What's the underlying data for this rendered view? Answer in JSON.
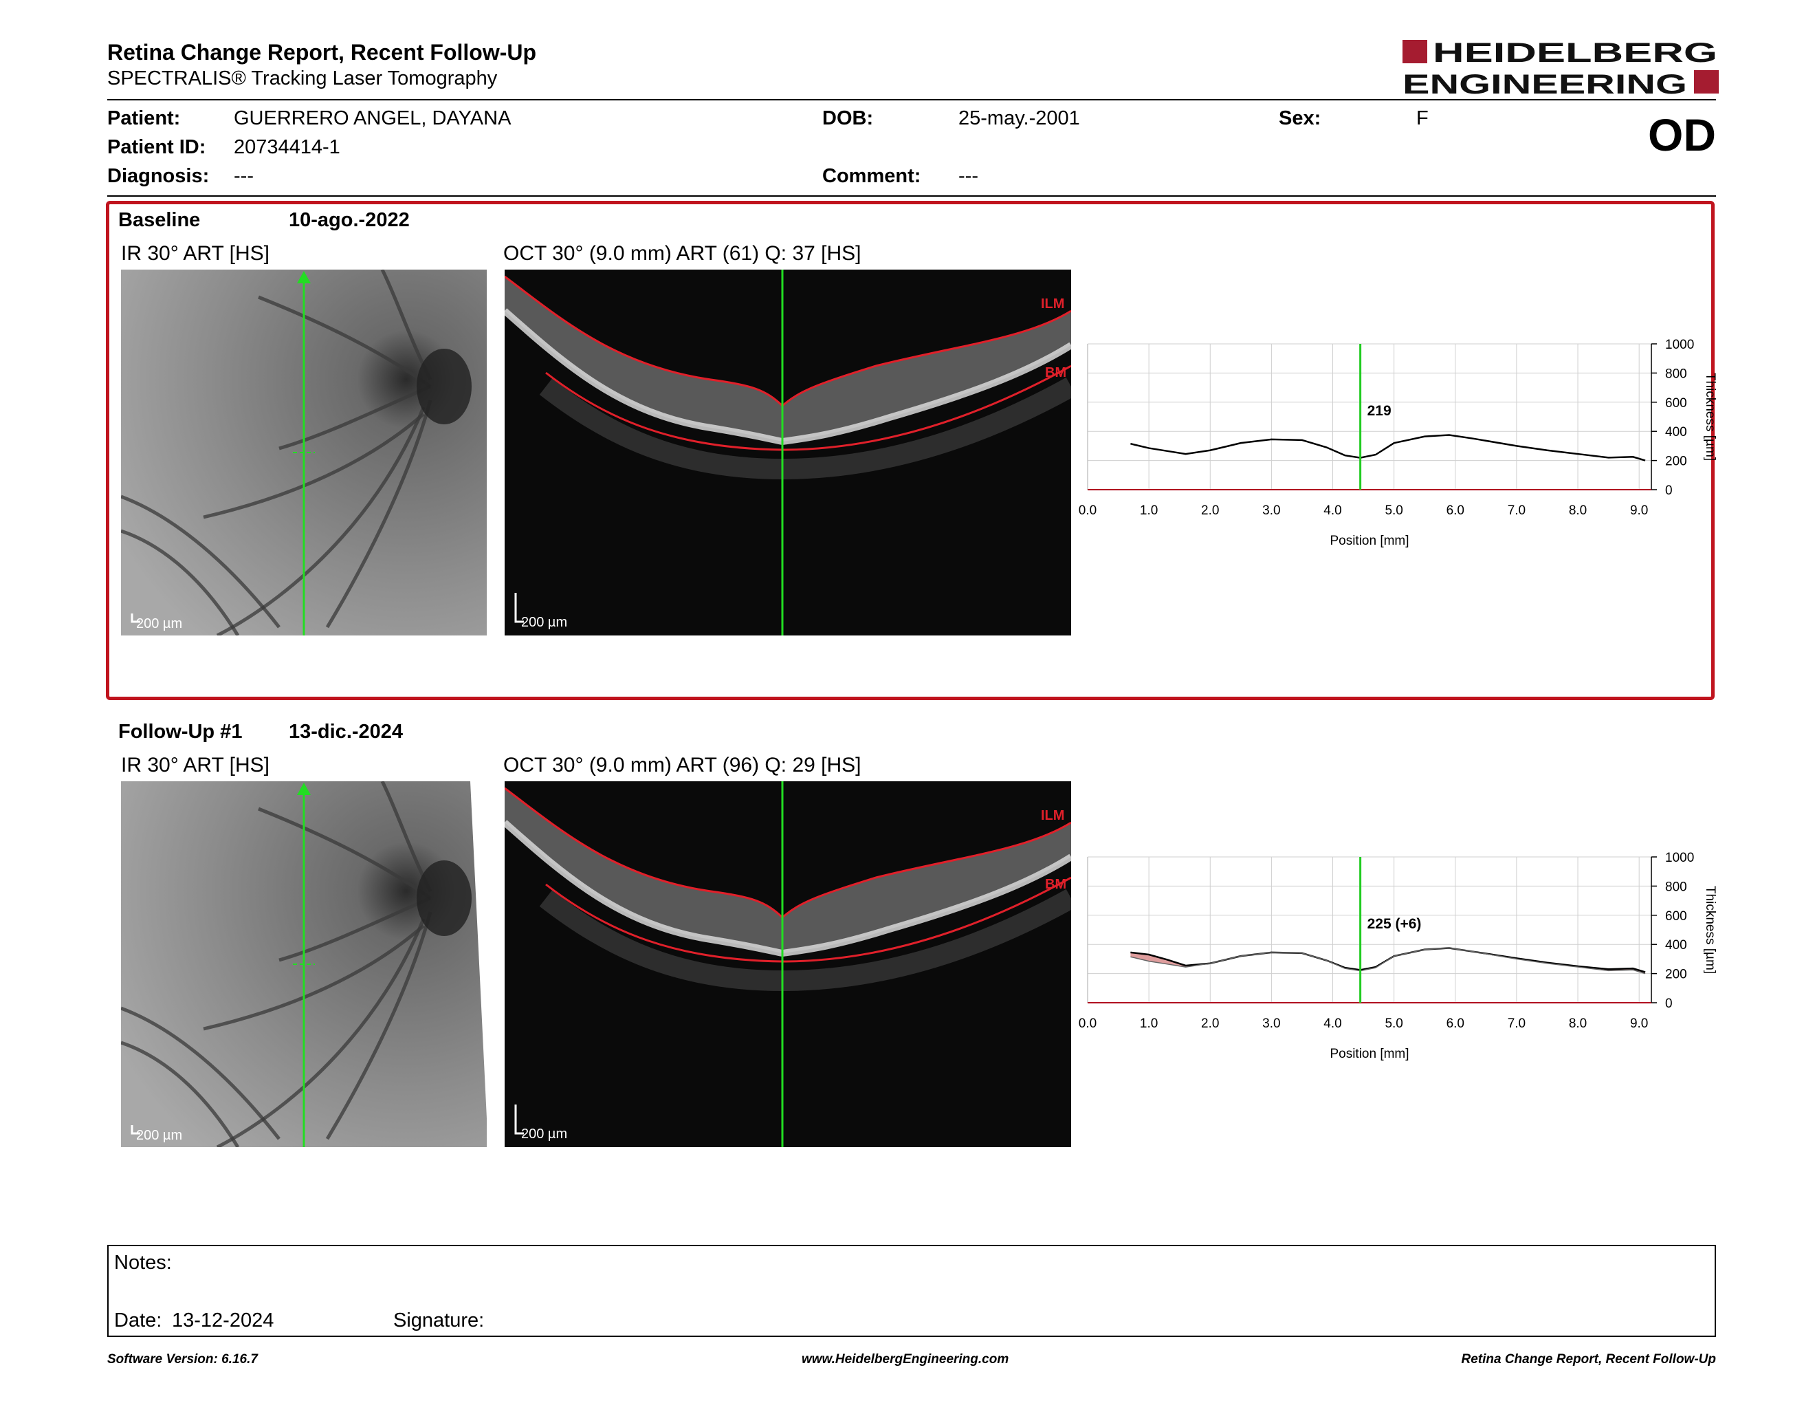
{
  "report": {
    "title": "Retina Change Report, Recent Follow-Up",
    "subtitle": "SPECTRALIS® Tracking Laser Tomography",
    "logo_line1": "HEIDELBERG",
    "logo_line2": "ENGINEERING",
    "eye": "OD"
  },
  "patient": {
    "patient_label": "Patient:",
    "patient_value": "GUERRERO ANGEL, DAYANA",
    "id_label": "Patient ID:",
    "id_value": "20734414-1",
    "diagnosis_label": "Diagnosis:",
    "diagnosis_value": "---",
    "dob_label": "DOB:",
    "dob_value": "25-may.-2001",
    "comment_label": "Comment:",
    "comment_value": "---",
    "sex_label": "Sex:",
    "sex_value": "F"
  },
  "exams": [
    {
      "name": "Baseline",
      "date": "10-ago.-2022",
      "ir_caption": "IR 30° ART [HS]",
      "oct_caption": "OCT 30° (9.0 mm) ART (61) Q: 37 [HS]",
      "scale_ir": "200 µm",
      "scale_oct": "200 µm",
      "ilm_label": "ILM",
      "bm_label": "BM",
      "cursor_value": "219"
    },
    {
      "name": "Follow-Up #1",
      "date": "13-dic.-2024",
      "ir_caption": "IR 30° ART [HS]",
      "oct_caption": "OCT 30° (9.0 mm) ART (96) Q: 29 [HS]",
      "scale_ir": "200 µm",
      "scale_oct": "200 µm",
      "ilm_label": "ILM",
      "bm_label": "BM",
      "cursor_value": "225 (+6)"
    }
  ],
  "chart_data": [
    {
      "type": "line",
      "xlabel": "Position [mm]",
      "ylabel": "Thickness [µm]",
      "xlim": [
        0,
        9.2
      ],
      "ylim": [
        0,
        1000
      ],
      "x_ticks": [
        "0.0",
        "1.0",
        "2.0",
        "3.0",
        "4.0",
        "5.0",
        "6.0",
        "7.0",
        "8.0",
        "9.0"
      ],
      "y_ticks": [
        "0",
        "200",
        "400",
        "600",
        "800",
        "1000"
      ],
      "grid": true,
      "cursor_x": 4.45,
      "cursor_label": "219",
      "series": [
        {
          "x": [
            0.7,
            1.0,
            1.3,
            1.6,
            2.0,
            2.5,
            3.0,
            3.5,
            3.9,
            4.2,
            4.45,
            4.7,
            5.0,
            5.5,
            5.9,
            6.3,
            7.0,
            7.5,
            8.0,
            8.5,
            8.9,
            9.1
          ],
          "values": [
            315,
            285,
            265,
            245,
            270,
            320,
            345,
            340,
            290,
            235,
            219,
            240,
            320,
            365,
            375,
            350,
            300,
            270,
            245,
            220,
            225,
            200
          ]
        }
      ]
    },
    {
      "type": "line",
      "xlabel": "Position [mm]",
      "ylabel": "Thickness [µm]",
      "xlim": [
        0,
        9.2
      ],
      "ylim": [
        0,
        1000
      ],
      "x_ticks": [
        "0.0",
        "1.0",
        "2.0",
        "3.0",
        "4.0",
        "5.0",
        "6.0",
        "7.0",
        "8.0",
        "9.0"
      ],
      "y_ticks": [
        "0",
        "200",
        "400",
        "600",
        "800",
        "1000"
      ],
      "grid": true,
      "cursor_x": 4.45,
      "cursor_label": "225 (+6)",
      "series": [
        {
          "x": [
            0.7,
            1.0,
            1.3,
            1.6,
            2.0,
            2.5,
            3.0,
            3.5,
            3.9,
            4.2,
            4.45,
            4.7,
            5.0,
            5.5,
            5.9,
            6.3,
            7.0,
            7.5,
            8.0,
            8.5,
            8.9,
            9.1
          ],
          "values": [
            345,
            330,
            295,
            255,
            270,
            320,
            345,
            340,
            290,
            240,
            225,
            245,
            320,
            365,
            375,
            350,
            305,
            275,
            250,
            230,
            235,
            210
          ]
        },
        {
          "x": [
            0.7,
            1.0,
            1.3,
            1.6,
            2.0,
            2.5,
            3.0,
            3.5,
            3.9,
            4.2,
            4.45,
            4.7,
            5.0,
            5.5,
            5.9,
            6.3,
            7.0,
            7.5,
            8.0,
            8.5,
            8.9,
            9.1
          ],
          "values": [
            315,
            285,
            265,
            245,
            270,
            320,
            345,
            340,
            290,
            235,
            219,
            240,
            320,
            365,
            375,
            350,
            300,
            270,
            245,
            220,
            225,
            200
          ]
        }
      ],
      "colors": {
        "increase_fill": "#d98c8c",
        "line": "#000000",
        "cursor": "#22cc22",
        "baseline_axis": "#b01020"
      }
    }
  ],
  "notes": {
    "notes_label": "Notes:",
    "date_label": "Date:",
    "date_value": "13-12-2024",
    "signature_label": "Signature:"
  },
  "footer": {
    "software": "Software Version: 6.16.7",
    "website": "www.HeidelbergEngineering.com",
    "report_name": "Retina Change Report, Recent Follow-Up"
  },
  "colors": {
    "brand_red": "#a51c30",
    "section_border": "#c0141e",
    "scan_line": "#22dd22",
    "layer_line": "#e0202a"
  }
}
